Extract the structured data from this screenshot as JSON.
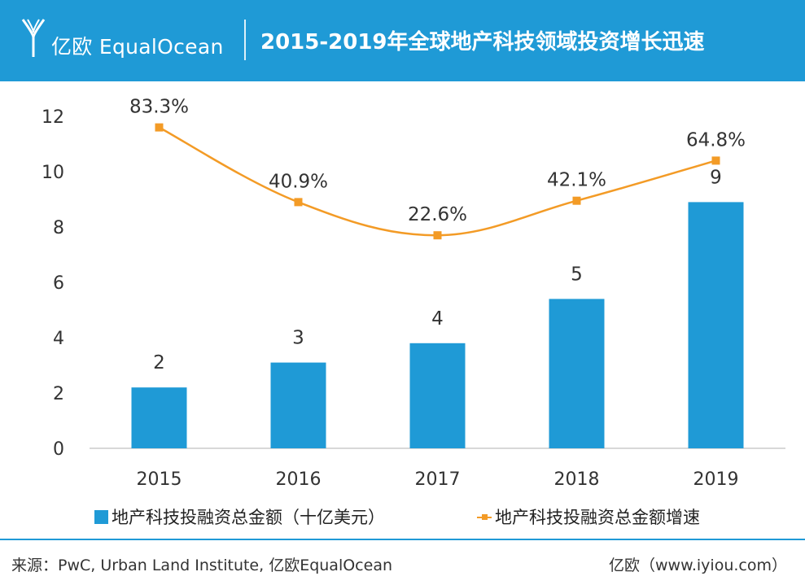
{
  "header": {
    "brand": "亿欧 EqualOcean",
    "title": "2015-2019年全球地产科技领域投资增长迅速",
    "bg_color": "#1f9ad6",
    "logo_icon": "equalocean-logo-icon"
  },
  "chart_data": {
    "type": "bar+line",
    "categories": [
      "2015",
      "2016",
      "2017",
      "2018",
      "2019"
    ],
    "ylim": [
      0,
      12
    ],
    "yticks": [
      "0",
      "2",
      "4",
      "6",
      "8",
      "10",
      "12"
    ],
    "series": [
      {
        "name": "地产科技投融资总金额（十亿美元）",
        "type": "bar",
        "color": "#1f9ad6",
        "values": [
          2.2,
          3.1,
          3.8,
          5.4,
          8.9
        ],
        "labels": [
          "2",
          "3",
          "4",
          "5",
          "9"
        ]
      },
      {
        "name": "地产科技投融资总金额增速",
        "type": "line",
        "color": "#f39b26",
        "plot_values": [
          11.6,
          8.9,
          7.7,
          8.95,
          10.4
        ],
        "values_pct": [
          83.3,
          40.9,
          22.6,
          42.1,
          64.8
        ],
        "labels": [
          "83.3%",
          "40.9%",
          "22.6%",
          "42.1%",
          "64.8%"
        ]
      }
    ],
    "grid": false,
    "legend_position": "bottom"
  },
  "legend": {
    "bar_label": "地产科技投融资总金额（十亿美元）",
    "line_label": "地产科技投融资总金额增速"
  },
  "footer": {
    "source": "来源：PwC, Urban Land Institute, 亿欧EqualOcean",
    "site": "亿欧（www.iyiou.com）"
  }
}
